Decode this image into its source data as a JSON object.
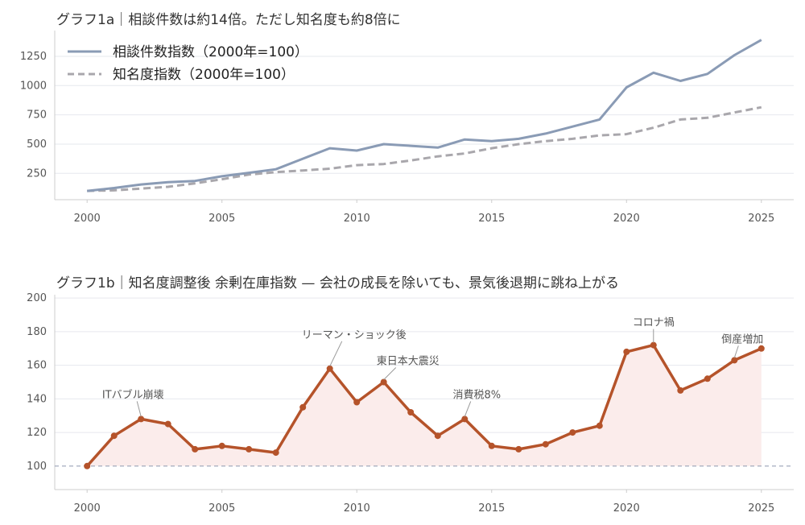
{
  "chart_data": [
    {
      "type": "line",
      "title": "グラフ1a｜相談件数は約14倍。ただし知名度も約8倍に",
      "x": [
        2000,
        2001,
        2002,
        2003,
        2004,
        2005,
        2006,
        2007,
        2008,
        2009,
        2010,
        2011,
        2012,
        2013,
        2014,
        2015,
        2016,
        2017,
        2018,
        2019,
        2020,
        2021,
        2022,
        2023,
        2024,
        2025
      ],
      "series": [
        {
          "name": "相談件数指数（2000年=100）",
          "color": "#8a9bb5",
          "dash": "solid",
          "values": [
            100,
            125,
            155,
            175,
            185,
            225,
            255,
            285,
            375,
            465,
            445,
            500,
            485,
            470,
            540,
            525,
            545,
            590,
            650,
            710,
            985,
            1110,
            1040,
            1100,
            1260,
            1390
          ]
        },
        {
          "name": "知名度指数（2000年=100）",
          "color": "#a9a7ac",
          "dash": "dashed",
          "values": [
            100,
            105,
            120,
            135,
            165,
            200,
            240,
            260,
            275,
            290,
            320,
            330,
            360,
            395,
            420,
            465,
            500,
            525,
            545,
            575,
            585,
            640,
            710,
            725,
            770,
            815
          ]
        }
      ],
      "xticks": [
        "2000",
        "2005",
        "2010",
        "2015",
        "2020",
        "2025"
      ],
      "yticks": [
        "250",
        "500",
        "750",
        "1000",
        "1250"
      ],
      "xlim": [
        1998.8,
        2026.2
      ],
      "ylim": [
        25,
        1470
      ],
      "grid": "horizontal",
      "legend": "top-left"
    },
    {
      "type": "line",
      "title": "グラフ1b｜知名度調整後 余剰在庫指数 — 会社の成長を除いても、景気後退期に跳ね上がる",
      "x": [
        2000,
        2001,
        2002,
        2003,
        2004,
        2005,
        2006,
        2007,
        2008,
        2009,
        2010,
        2011,
        2012,
        2013,
        2014,
        2015,
        2016,
        2017,
        2018,
        2019,
        2020,
        2021,
        2022,
        2023,
        2024,
        2025
      ],
      "series": [
        {
          "color": "#b5532a",
          "fill": "#fbeceb",
          "values": [
            100,
            118,
            128,
            125,
            110,
            112,
            110,
            108,
            135,
            158,
            138,
            150,
            132,
            118,
            128,
            112,
            110,
            113,
            120,
            124,
            168,
            172,
            145,
            152,
            163,
            170
          ]
        }
      ],
      "baseline": 100,
      "annotations": [
        {
          "label": "ITバブル崩壊",
          "x": 2002
        },
        {
          "label": "リーマン・ショック後",
          "x": 2009
        },
        {
          "label": "東日本大震災",
          "x": 2011
        },
        {
          "label": "消費税8%",
          "x": 2014
        },
        {
          "label": "コロナ禍",
          "x": 2021
        },
        {
          "label": "倒産増加",
          "x": 2024
        }
      ],
      "xticks": [
        "2000",
        "2005",
        "2010",
        "2015",
        "2020",
        "2025"
      ],
      "yticks": [
        "100",
        "120",
        "140",
        "160",
        "180",
        "200"
      ],
      "xlim": [
        1998.8,
        2026.2
      ],
      "ylim": [
        86,
        202
      ],
      "grid": "horizontal"
    }
  ]
}
